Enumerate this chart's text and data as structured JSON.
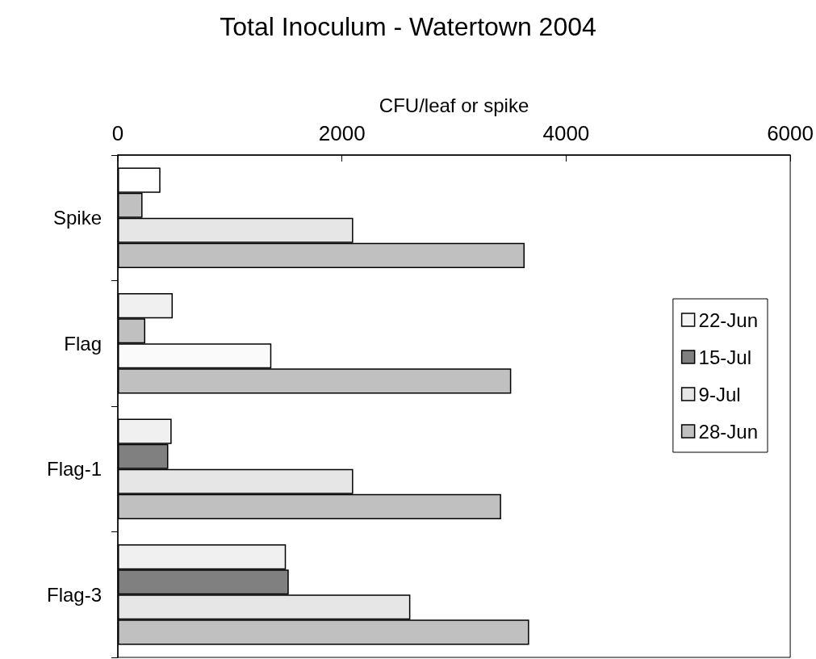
{
  "chart_data": {
    "type": "bar",
    "orientation": "horizontal",
    "title": "Total Inoculum - Watertown 2004",
    "xlabel": "CFU/leaf or spike",
    "categories": [
      "Spike",
      "Flag",
      "Flag-1",
      "Flag-3"
    ],
    "series": [
      {
        "name": "22-Jun",
        "color": "#f4f4f4",
        "colors": [
          "#ffffff",
          "#f0f0f0",
          "#f0f0f0",
          "#f0f0f0"
        ],
        "values": [
          380,
          490,
          480,
          1500
        ]
      },
      {
        "name": "15-Jul",
        "color": "#808080",
        "colors": [
          "#c0c0c0",
          "#c0c0c0",
          "#808080",
          "#808080"
        ],
        "values": [
          220,
          245,
          450,
          1525
        ]
      },
      {
        "name": "9-Jul",
        "color": "#e6e6e6",
        "colors": [
          "#e6e6e6",
          "#fafafa",
          "#e6e6e6",
          "#e6e6e6"
        ],
        "values": [
          2100,
          1370,
          2100,
          2610
        ]
      },
      {
        "name": "28-Jun",
        "color": "#c0c0c0",
        "colors": [
          "#c0c0c0",
          "#c0c0c0",
          "#c0c0c0",
          "#c0c0c0"
        ],
        "values": [
          3630,
          3510,
          3420,
          3670
        ]
      }
    ],
    "xlim": [
      0,
      6000
    ],
    "xticks": [
      0,
      2000,
      4000,
      6000
    ],
    "grid": false,
    "legend": "right"
  }
}
